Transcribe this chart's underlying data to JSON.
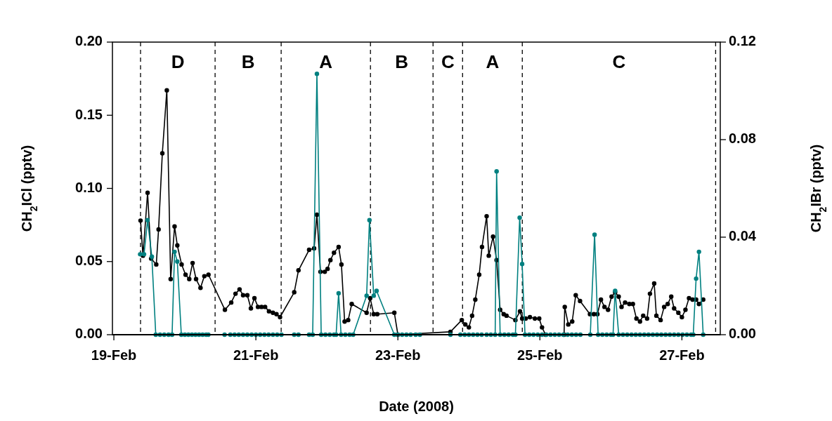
{
  "chart_data": {
    "type": "line",
    "xlabel": "Date (2008)",
    "ylabel": "CH$_{2}$ICl (pptv)",
    "y2label": "CH$_{2}$IBr (pptv)",
    "xlim": [
      "2008-02-18T23:31",
      "2008-02-27T12:58"
    ],
    "xticks": [
      {
        "value": "2008-02-19",
        "label": "19-Feb"
      },
      {
        "value": "2008-02-21",
        "label": "21-Feb"
      },
      {
        "value": "2008-02-23",
        "label": "23-Feb"
      },
      {
        "value": "2008-02-25",
        "label": "25-Feb"
      },
      {
        "value": "2008-02-27",
        "label": "27-Feb"
      }
    ],
    "ylim": [
      0,
      0.2
    ],
    "yticks": [
      {
        "value": 0,
        "label": "0.00"
      },
      {
        "value": 0.05,
        "label": "0.05"
      },
      {
        "value": 0.1,
        "label": "0.10"
      },
      {
        "value": 0.15,
        "label": "0.15"
      },
      {
        "value": 0.2,
        "label": "0.20"
      }
    ],
    "y2lim": [
      0,
      0.12
    ],
    "y2ticks": [
      {
        "value": 0,
        "label": "0.00"
      },
      {
        "value": 0.04,
        "label": "0.04"
      },
      {
        "value": 0.08,
        "label": "0.08"
      },
      {
        "value": 0.12,
        "label": "0.12"
      }
    ],
    "grid": false,
    "marker": "circle",
    "line_style": "solid",
    "series": [
      {
        "color": "#000000",
        "x": [
          "2008-02-19T09:01",
          "2008-02-19T09:50",
          "2008-02-19T11:24",
          "2008-02-19T12:36",
          "2008-02-19T14:20",
          "2008-02-19T15:07",
          "2008-02-19T16:23",
          "2008-02-19T17:54",
          "2008-02-19T19:12",
          "2008-02-19T20:31",
          "2008-02-19T21:27",
          "2008-02-19T22:54",
          "2008-02-20T00:14",
          "2008-02-20T01:29",
          "2008-02-20T02:37",
          "2008-02-20T03:47",
          "2008-02-20T05:17",
          "2008-02-20T06:35",
          "2008-02-20T07:59",
          "2008-02-20T13:32",
          "2008-02-20T15:40",
          "2008-02-20T17:07",
          "2008-02-20T18:29",
          "2008-02-20T19:41",
          "2008-02-20T21:07",
          "2008-02-20T22:19",
          "2008-02-20T23:31",
          "2008-02-21T00:43",
          "2008-02-21T01:55",
          "2008-02-21T03:07",
          "2008-02-21T04:26",
          "2008-02-21T05:46",
          "2008-02-21T06:58",
          "2008-02-21T08:10",
          "2008-02-21T12:58",
          "2008-02-21T14:24",
          "2008-02-21T18:00",
          "2008-02-21T19:41",
          "2008-02-21T20:38",
          "2008-02-21T21:50",
          "2008-02-21T23:17",
          "2008-02-22T00:14",
          "2008-02-22T01:12",
          "2008-02-22T02:24",
          "2008-02-22T03:58",
          "2008-02-22T04:55",
          "2008-02-22T06:00",
          "2008-02-22T07:12",
          "2008-02-22T08:24",
          "2008-02-22T13:26",
          "2008-02-22T14:38",
          "2008-02-22T15:50",
          "2008-02-22T17:02",
          "2008-02-22T22:48",
          "2008-02-23T00:00",
          "2008-02-23T17:46",
          "2008-02-23T21:36",
          "2008-02-23T22:48",
          "2008-02-24T00:00",
          "2008-02-24T01:05",
          "2008-02-24T02:10",
          "2008-02-24T03:29",
          "2008-02-24T04:26",
          "2008-02-24T06:00",
          "2008-02-24T06:43",
          "2008-02-24T08:10",
          "2008-02-24T09:22",
          "2008-02-24T10:34",
          "2008-02-24T11:46",
          "2008-02-24T12:43",
          "2008-02-24T15:43",
          "2008-02-24T17:17",
          "2008-02-24T18:00",
          "2008-02-24T19:12",
          "2008-02-24T20:38",
          "2008-02-24T22:19",
          "2008-02-24T23:46",
          "2008-02-25T00:43",
          "2008-02-25T01:55",
          "2008-02-25T08:10",
          "2008-02-25T08:24",
          "2008-02-25T09:36",
          "2008-02-25T10:55",
          "2008-02-25T12:07",
          "2008-02-25T13:34",
          "2008-02-25T16:55",
          "2008-02-25T18:14",
          "2008-02-25T19:26",
          "2008-02-25T20:38",
          "2008-02-25T21:50",
          "2008-02-25T23:02",
          "2008-02-26T00:14",
          "2008-02-26T01:26",
          "2008-02-26T02:38",
          "2008-02-26T03:36",
          "2008-02-26T04:48",
          "2008-02-26T06:14",
          "2008-02-26T07:26",
          "2008-02-26T08:38",
          "2008-02-26T09:50",
          "2008-02-26T10:55",
          "2008-02-26T12:14",
          "2008-02-26T13:12",
          "2008-02-26T14:38",
          "2008-02-26T15:22",
          "2008-02-26T16:48",
          "2008-02-26T18:00",
          "2008-02-26T19:12",
          "2008-02-26T20:24",
          "2008-02-26T21:22",
          "2008-02-26T22:48",
          "2008-02-27T00:00",
          "2008-02-27T01:12",
          "2008-02-27T02:24",
          "2008-02-27T03:36",
          "2008-02-27T04:48",
          "2008-02-27T05:46",
          "2008-02-27T07:12"
        ],
        "values": [
          0.078,
          0.054,
          0.097,
          0.052,
          0.048,
          0.072,
          0.124,
          0.167,
          0.038,
          0.074,
          0.061,
          0.048,
          0.041,
          0.038,
          0.049,
          0.038,
          0.032,
          0.04,
          0.041,
          0.017,
          0.022,
          0.028,
          0.031,
          0.027,
          0.027,
          0.018,
          0.025,
          0.019,
          0.019,
          0.019,
          0.016,
          0.015,
          0.014,
          0.012,
          0.029,
          0.044,
          0.058,
          0.059,
          0.082,
          0.043,
          0.043,
          0.045,
          0.051,
          0.056,
          0.06,
          0.048,
          0.009,
          0.01,
          0.021,
          0.015,
          0.025,
          0.014,
          0.014,
          0.015,
          0,
          0.002,
          0.01,
          0.007,
          0.005,
          0.013,
          0.024,
          0.041,
          0.06,
          0.081,
          0.054,
          0.067,
          0.051,
          0.017,
          0.014,
          0.013,
          0.01,
          0.016,
          0.011,
          0.011,
          0.012,
          0.011,
          0.011,
          0.005,
          0,
          0,
          0.019,
          0.007,
          0.009,
          0.027,
          0.023,
          0.014,
          0.014,
          0.014,
          0.024,
          0.019,
          0.017,
          0.026,
          0.029,
          0.026,
          0.019,
          0.022,
          0.021,
          0.021,
          0.011,
          0.009,
          0.013,
          0.011,
          0.028,
          0.035,
          0.013,
          0.01,
          0.019,
          0.021,
          0.026,
          0.018,
          0.015,
          0.012,
          0.017,
          0.025,
          0.024,
          0.024,
          0.021,
          0.024
        ]
      },
      {
        "color": "#008080",
        "axis": "y2",
        "x": [
          "2008-02-19T08:53",
          "2008-02-19T10:12",
          "2008-02-19T11:24",
          "2008-02-19T12:50",
          "2008-02-19T14:10",
          "2008-02-19T15:36",
          "2008-02-19T17:02",
          "2008-02-19T18:29",
          "2008-02-19T19:41",
          "2008-02-19T20:31",
          "2008-02-19T21:27",
          "2008-02-19T22:48",
          "2008-02-20T00:00",
          "2008-02-20T01:12",
          "2008-02-20T02:24",
          "2008-02-20T03:36",
          "2008-02-20T04:48",
          "2008-02-20T06:00",
          "2008-02-20T07:12",
          "2008-02-20T07:55",
          "2008-02-20T13:26",
          "2008-02-20T15:22",
          "2008-02-20T16:48",
          "2008-02-20T18:14",
          "2008-02-20T19:41",
          "2008-02-20T21:07",
          "2008-02-20T22:34",
          "2008-02-21T00:00",
          "2008-02-21T01:26",
          "2008-02-21T02:53",
          "2008-02-21T04:19",
          "2008-02-21T05:46",
          "2008-02-21T07:12",
          "2008-02-21T08:38",
          "2008-02-21T12:58",
          "2008-02-21T14:24",
          "2008-02-21T18:00",
          "2008-02-21T19:12",
          "2008-02-21T20:38",
          "2008-02-21T22:05",
          "2008-02-21T23:31",
          "2008-02-22T00:58",
          "2008-02-22T02:24",
          "2008-02-22T03:07",
          "2008-02-22T03:58",
          "2008-02-22T04:48",
          "2008-02-22T06:14",
          "2008-02-22T07:41",
          "2008-02-22T08:53",
          "2008-02-22T13:26",
          "2008-02-22T14:24",
          "2008-02-22T15:50",
          "2008-02-22T16:48",
          "2008-02-22T22:48",
          "2008-02-23T00:00",
          "2008-02-23T01:26",
          "2008-02-23T02:53",
          "2008-02-23T04:19",
          "2008-02-23T06:00",
          "2008-02-23T07:26",
          "2008-02-23T17:46",
          "2008-02-23T21:07",
          "2008-02-23T22:34",
          "2008-02-24T00:00",
          "2008-02-24T01:26",
          "2008-02-24T02:53",
          "2008-02-24T04:19",
          "2008-02-24T06:00",
          "2008-02-24T07:26",
          "2008-02-24T08:53",
          "2008-02-24T09:22",
          "2008-02-24T10:34",
          "2008-02-24T12:00",
          "2008-02-24T13:26",
          "2008-02-24T14:53",
          "2008-02-24T15:43",
          "2008-02-24T17:10",
          "2008-02-24T18:00",
          "2008-02-24T18:58",
          "2008-02-24T20:24",
          "2008-02-24T21:50",
          "2008-02-24T23:17",
          "2008-02-25T00:43",
          "2008-02-25T02:10",
          "2008-02-25T03:36",
          "2008-02-25T05:02",
          "2008-02-25T06:29",
          "2008-02-25T07:55",
          "2008-02-25T09:22",
          "2008-02-25T10:48",
          "2008-02-25T12:14",
          "2008-02-25T13:41",
          "2008-02-25T17:02",
          "2008-02-25T18:29",
          "2008-02-25T19:41",
          "2008-02-25T21:07",
          "2008-02-25T22:34",
          "2008-02-26T00:00",
          "2008-02-26T00:43",
          "2008-02-26T01:26",
          "2008-02-26T02:38",
          "2008-02-26T04:05",
          "2008-02-26T05:31",
          "2008-02-26T06:58",
          "2008-02-26T08:24",
          "2008-02-26T09:50",
          "2008-02-26T11:17",
          "2008-02-26T12:43",
          "2008-02-26T14:10",
          "2008-02-26T15:36",
          "2008-02-26T17:02",
          "2008-02-26T18:29",
          "2008-02-26T19:55",
          "2008-02-26T21:22",
          "2008-02-26T22:48",
          "2008-02-27T00:14",
          "2008-02-27T01:41",
          "2008-02-27T03:07",
          "2008-02-27T03:50",
          "2008-02-27T04:48",
          "2008-02-27T05:46",
          "2008-02-27T07:12"
        ],
        "values": [
          0.033,
          0.033,
          0.047,
          0.032,
          0,
          0,
          0,
          0,
          0,
          0.034,
          0.03,
          0,
          0,
          0,
          0,
          0,
          0,
          0,
          0,
          0,
          0,
          0,
          0,
          0,
          0,
          0,
          0,
          0,
          0,
          0,
          0,
          0,
          0,
          0,
          0,
          0,
          0,
          0,
          0.107,
          0,
          0,
          0,
          0,
          0,
          0.017,
          0,
          0,
          0,
          0,
          0.016,
          0.047,
          0.016,
          0.018,
          0,
          0,
          0,
          0,
          0,
          0,
          0,
          0,
          0,
          0,
          0,
          0,
          0,
          0,
          0,
          0,
          0,
          0.067,
          0,
          0,
          0,
          0,
          0,
          0.048,
          0.029,
          0,
          0,
          0,
          0,
          0,
          0,
          0,
          0,
          0,
          0,
          0,
          0,
          0,
          0,
          0,
          0.041,
          0,
          0,
          0,
          0,
          0,
          0.018,
          0,
          0,
          0,
          0,
          0,
          0,
          0,
          0,
          0,
          0,
          0,
          0,
          0,
          0,
          0,
          0,
          0,
          0,
          0,
          0.023,
          0.034,
          0
        ]
      }
    ],
    "ref_lines": [
      {
        "axis": "x",
        "value": "2008-02-19T09:01",
        "color": "#000000",
        "line_style": "dashed"
      },
      {
        "axis": "x",
        "value": "2008-02-20T10:13",
        "color": "#000000",
        "line_style": "dashed"
      },
      {
        "axis": "x",
        "value": "2008-02-21T08:33",
        "color": "#000000",
        "line_style": "dashed"
      },
      {
        "axis": "x",
        "value": "2008-02-22T14:44",
        "color": "#000000",
        "line_style": "dashed"
      },
      {
        "axis": "x",
        "value": "2008-02-23T11:53",
        "color": "#000000",
        "line_style": "dashed"
      },
      {
        "axis": "x",
        "value": "2008-02-23T21:52",
        "color": "#000000",
        "line_style": "dashed"
      },
      {
        "axis": "x",
        "value": "2008-02-24T18:03",
        "color": "#000000",
        "line_style": "dashed"
      },
      {
        "axis": "x",
        "value": "2008-02-27T11:24",
        "color": "#000000",
        "line_style": "dashed"
      }
    ],
    "annotations": [
      "D",
      "B",
      "A",
      "B",
      "C",
      "A",
      "C"
    ]
  }
}
